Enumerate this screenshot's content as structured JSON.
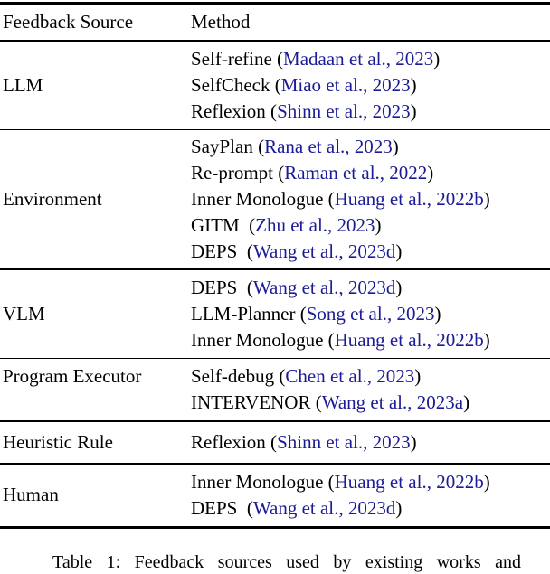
{
  "table": {
    "header": {
      "feedback_source": "Feedback Source",
      "method": "Method"
    },
    "rows": [
      {
        "source": "LLM",
        "methods": [
          {
            "pre": "Self-refine (",
            "cite": "Madaan et al., 2023",
            "post": ")"
          },
          {
            "pre": "SelfCheck (",
            "cite": "Miao et al., 2023",
            "post": ")"
          },
          {
            "pre": "Reflexion (",
            "cite": "Shinn et al., 2023",
            "post": ")"
          }
        ]
      },
      {
        "source": "Environment",
        "methods": [
          {
            "pre": "SayPlan (",
            "cite": "Rana et al., 2023",
            "post": ")"
          },
          {
            "pre": "Re-prompt (",
            "cite": "Raman et al., 2022",
            "post": ")"
          },
          {
            "pre": "Inner Monologue (",
            "cite": "Huang et al., 2022b",
            "post": ")"
          },
          {
            "pre": "GITM  (",
            "cite": "Zhu et al., 2023",
            "post": ")"
          },
          {
            "pre": "DEPS  (",
            "cite": "Wang et al., 2023d",
            "post": ")"
          }
        ]
      },
      {
        "source": "VLM",
        "methods": [
          {
            "pre": "DEPS  (",
            "cite": "Wang et al., 2023d",
            "post": ")"
          },
          {
            "pre": "LLM-Planner (",
            "cite": "Song et al., 2023",
            "post": ")"
          },
          {
            "pre": "Inner Monologue (",
            "cite": "Huang et al., 2022b",
            "post": ")"
          }
        ]
      },
      {
        "source": "Program Executor",
        "methods": [
          {
            "pre": "Self-debug (",
            "cite": "Chen et al., 2023",
            "post": ")"
          },
          {
            "pre": "INTERVENOR (",
            "cite": "Wang et al., 2023a",
            "post": ")"
          }
        ]
      },
      {
        "source": "Heuristic Rule",
        "methods": [
          {
            "pre": "Reflexion (",
            "cite": "Shinn et al., 2023",
            "post": ")"
          }
        ]
      },
      {
        "source": "Human",
        "methods": [
          {
            "pre": "Inner Monologue (",
            "cite": "Huang et al., 2022b",
            "post": ")"
          },
          {
            "pre": "DEPS  (",
            "cite": "Wang et al., 2023d",
            "post": ")"
          }
        ]
      }
    ]
  },
  "caption": {
    "text": "Table 1: Feedback sources used by existing works and"
  },
  "colors": {
    "citation_link": "#1b1b96",
    "text": "#000000",
    "rule": "#000000"
  }
}
